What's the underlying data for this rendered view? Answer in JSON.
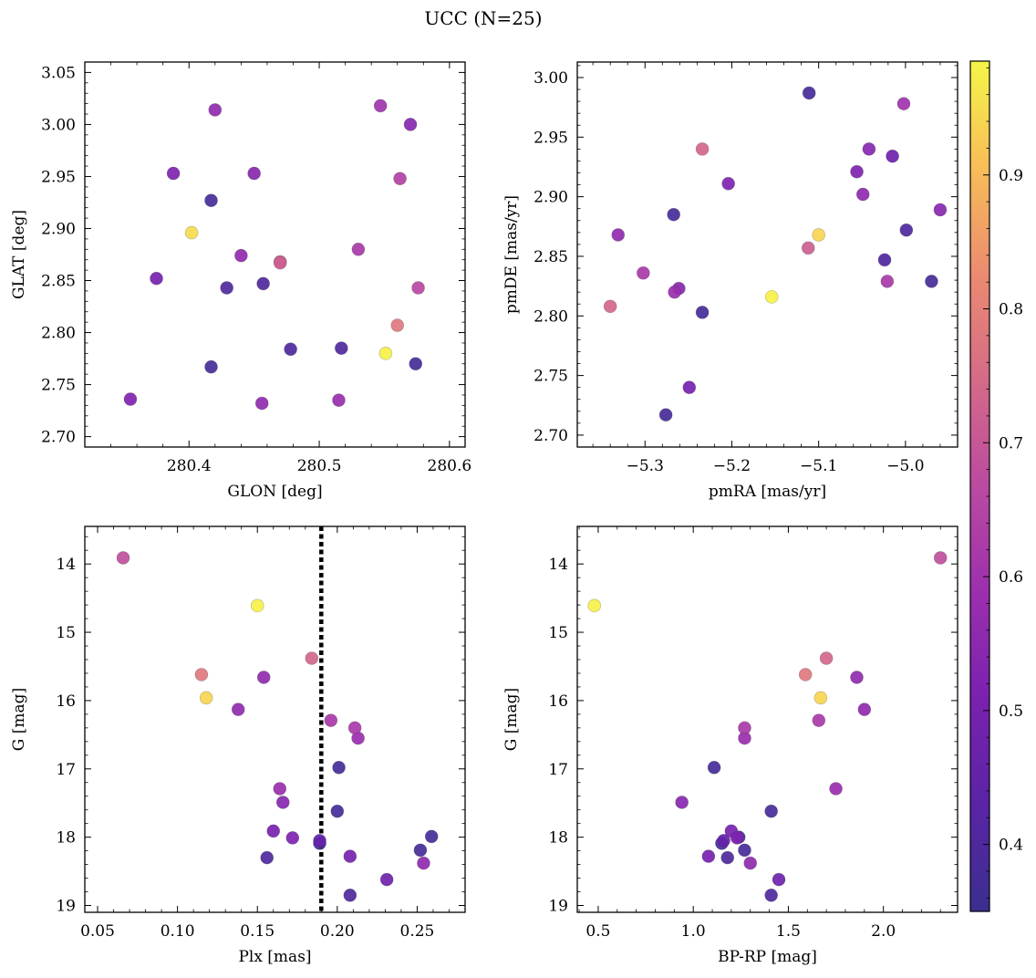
{
  "suptitle": "UCC (N=25)",
  "colorbar": {
    "colormap": "plasma",
    "range": [
      0.35,
      0.985
    ],
    "ticks": [
      0.4,
      0.5,
      0.6,
      0.7,
      0.8,
      0.9
    ],
    "tick_labels": [
      "0.4",
      "0.5",
      "0.6",
      "0.7",
      "0.8",
      "0.9"
    ]
  },
  "chart_data": [
    {
      "type": "scatter",
      "xlabel": "GLON [deg]",
      "ylabel": "GLAT [deg]",
      "xlim": [
        280.32,
        280.612
      ],
      "ylim": [
        2.69,
        3.06
      ],
      "xticks": [
        280.4,
        280.5,
        280.6
      ],
      "xtick_labels": [
        "280.4",
        "280.5",
        "280.6"
      ],
      "yticks": [
        2.7,
        2.75,
        2.8,
        2.85,
        2.9,
        2.95,
        3.0,
        3.05
      ],
      "ytick_labels": [
        "2.70",
        "2.75",
        "2.80",
        "2.85",
        "2.90",
        "2.95",
        "3.00",
        "3.05"
      ],
      "points": [
        {
          "x": 280.355,
          "y": 2.736,
          "c": 0.52
        },
        {
          "x": 280.375,
          "y": 2.852,
          "c": 0.5
        },
        {
          "x": 280.388,
          "y": 2.953,
          "c": 0.52
        },
        {
          "x": 280.402,
          "y": 2.896,
          "c": 0.95
        },
        {
          "x": 280.417,
          "y": 2.927,
          "c": 0.38
        },
        {
          "x": 280.417,
          "y": 2.767,
          "c": 0.38
        },
        {
          "x": 280.42,
          "y": 3.014,
          "c": 0.56
        },
        {
          "x": 280.429,
          "y": 2.843,
          "c": 0.4
        },
        {
          "x": 280.44,
          "y": 2.874,
          "c": 0.56
        },
        {
          "x": 280.45,
          "y": 2.953,
          "c": 0.54
        },
        {
          "x": 280.456,
          "y": 2.732,
          "c": 0.56
        },
        {
          "x": 280.457,
          "y": 2.847,
          "c": 0.4
        },
        {
          "x": 280.47,
          "y": 2.868,
          "c": 0.72
        },
        {
          "x": 280.478,
          "y": 2.784,
          "c": 0.4
        },
        {
          "x": 280.515,
          "y": 2.735,
          "c": 0.58
        },
        {
          "x": 280.517,
          "y": 2.785,
          "c": 0.4
        },
        {
          "x": 280.53,
          "y": 2.88,
          "c": 0.62
        },
        {
          "x": 280.547,
          "y": 3.018,
          "c": 0.6
        },
        {
          "x": 280.551,
          "y": 2.78,
          "c": 0.98
        },
        {
          "x": 280.56,
          "y": 2.807,
          "c": 0.78
        },
        {
          "x": 280.562,
          "y": 2.948,
          "c": 0.64
        },
        {
          "x": 280.57,
          "y": 3.0,
          "c": 0.54
        },
        {
          "x": 280.574,
          "y": 2.77,
          "c": 0.38
        },
        {
          "x": 280.576,
          "y": 2.843,
          "c": 0.66
        },
        {
          "x": 280.47,
          "y": 2.867,
          "c": 0.72
        }
      ]
    },
    {
      "type": "scatter",
      "xlabel": "pmRA [mas/yr]",
      "ylabel": "pmDE [mas/yr]",
      "xlim": [
        -5.378,
        -4.94
      ],
      "ylim": [
        2.69,
        3.013
      ],
      "xticks": [
        -5.3,
        -5.2,
        -5.1,
        -5.0
      ],
      "xtick_labels": [
        "−5.3",
        "−5.2",
        "−5.1",
        "−5.0"
      ],
      "yticks": [
        2.7,
        2.75,
        2.8,
        2.85,
        2.9,
        2.95,
        3.0
      ],
      "ytick_labels": [
        "2.70",
        "2.75",
        "2.80",
        "2.85",
        "2.90",
        "2.95",
        "3.00"
      ],
      "points": [
        {
          "x": -5.34,
          "y": 2.808,
          "c": 0.74
        },
        {
          "x": -5.331,
          "y": 2.868,
          "c": 0.56
        },
        {
          "x": -5.302,
          "y": 2.836,
          "c": 0.62
        },
        {
          "x": -5.276,
          "y": 2.717,
          "c": 0.38
        },
        {
          "x": -5.267,
          "y": 2.885,
          "c": 0.38
        },
        {
          "x": -5.266,
          "y": 2.82,
          "c": 0.58
        },
        {
          "x": -5.261,
          "y": 2.823,
          "c": 0.54
        },
        {
          "x": -5.249,
          "y": 2.74,
          "c": 0.5
        },
        {
          "x": -5.234,
          "y": 2.94,
          "c": 0.74
        },
        {
          "x": -5.234,
          "y": 2.803,
          "c": 0.38
        },
        {
          "x": -5.204,
          "y": 2.911,
          "c": 0.52
        },
        {
          "x": -5.154,
          "y": 2.816,
          "c": 0.98
        },
        {
          "x": -5.112,
          "y": 2.857,
          "c": 0.72
        },
        {
          "x": -5.111,
          "y": 2.987,
          "c": 0.38
        },
        {
          "x": -5.1,
          "y": 2.868,
          "c": 0.94
        },
        {
          "x": -5.056,
          "y": 2.921,
          "c": 0.52
        },
        {
          "x": -5.049,
          "y": 2.902,
          "c": 0.56
        },
        {
          "x": -5.042,
          "y": 2.94,
          "c": 0.54
        },
        {
          "x": -5.024,
          "y": 2.847,
          "c": 0.4
        },
        {
          "x": -5.021,
          "y": 2.829,
          "c": 0.62
        },
        {
          "x": -5.015,
          "y": 2.934,
          "c": 0.48
        },
        {
          "x": -5.002,
          "y": 2.978,
          "c": 0.6
        },
        {
          "x": -4.999,
          "y": 2.872,
          "c": 0.4
        },
        {
          "x": -4.97,
          "y": 2.829,
          "c": 0.38
        },
        {
          "x": -4.96,
          "y": 2.889,
          "c": 0.54
        }
      ]
    },
    {
      "type": "scatter",
      "xlabel": "Plx [mas]",
      "ylabel": "G [mag]",
      "xlim": [
        0.042,
        0.28
      ],
      "ylim": [
        19.1,
        13.45
      ],
      "y_inverted": true,
      "xticks": [
        0.05,
        0.1,
        0.15,
        0.2,
        0.25
      ],
      "xtick_labels": [
        "0.05",
        "0.10",
        "0.15",
        "0.20",
        "0.25"
      ],
      "yticks": [
        14,
        15,
        16,
        17,
        18,
        19
      ],
      "ytick_labels": [
        "14",
        "15",
        "16",
        "17",
        "18",
        "19"
      ],
      "vline": 0.19,
      "points": [
        {
          "x": 0.066,
          "y": 13.91,
          "c": 0.68
        },
        {
          "x": 0.115,
          "y": 15.62,
          "c": 0.78
        },
        {
          "x": 0.118,
          "y": 15.96,
          "c": 0.94
        },
        {
          "x": 0.138,
          "y": 16.13,
          "c": 0.56
        },
        {
          "x": 0.15,
          "y": 14.61,
          "c": 0.98
        },
        {
          "x": 0.154,
          "y": 15.66,
          "c": 0.56
        },
        {
          "x": 0.156,
          "y": 18.3,
          "c": 0.4
        },
        {
          "x": 0.16,
          "y": 17.91,
          "c": 0.5
        },
        {
          "x": 0.164,
          "y": 17.29,
          "c": 0.58
        },
        {
          "x": 0.166,
          "y": 17.49,
          "c": 0.54
        },
        {
          "x": 0.172,
          "y": 18.01,
          "c": 0.52
        },
        {
          "x": 0.184,
          "y": 15.38,
          "c": 0.74
        },
        {
          "x": 0.189,
          "y": 18.05,
          "c": 0.46
        },
        {
          "x": 0.189,
          "y": 18.09,
          "c": 0.38
        },
        {
          "x": 0.196,
          "y": 16.29,
          "c": 0.62
        },
        {
          "x": 0.2,
          "y": 17.62,
          "c": 0.38
        },
        {
          "x": 0.201,
          "y": 16.98,
          "c": 0.38
        },
        {
          "x": 0.208,
          "y": 18.28,
          "c": 0.5
        },
        {
          "x": 0.208,
          "y": 18.85,
          "c": 0.4
        },
        {
          "x": 0.211,
          "y": 16.4,
          "c": 0.62
        },
        {
          "x": 0.213,
          "y": 16.55,
          "c": 0.58
        },
        {
          "x": 0.231,
          "y": 18.62,
          "c": 0.48
        },
        {
          "x": 0.252,
          "y": 18.19,
          "c": 0.38
        },
        {
          "x": 0.254,
          "y": 18.38,
          "c": 0.56
        },
        {
          "x": 0.259,
          "y": 17.99,
          "c": 0.38
        }
      ]
    },
    {
      "type": "scatter",
      "xlabel": "BP-RP [mag]",
      "ylabel": "G [mag]",
      "xlim": [
        0.39,
        2.39
      ],
      "ylim": [
        19.1,
        13.45
      ],
      "y_inverted": true,
      "xticks": [
        0.5,
        1.0,
        1.5,
        2.0
      ],
      "xtick_labels": [
        "0.5",
        "1.0",
        "1.5",
        "2.0"
      ],
      "yticks": [
        14,
        15,
        16,
        17,
        18,
        19
      ],
      "ytick_labels": [
        "14",
        "15",
        "16",
        "17",
        "18",
        "19"
      ],
      "points": [
        {
          "x": 2.3,
          "y": 13.91,
          "c": 0.68
        },
        {
          "x": 0.48,
          "y": 14.61,
          "c": 0.98
        },
        {
          "x": 1.59,
          "y": 15.62,
          "c": 0.78
        },
        {
          "x": 1.7,
          "y": 15.38,
          "c": 0.74
        },
        {
          "x": 1.86,
          "y": 15.66,
          "c": 0.56
        },
        {
          "x": 1.67,
          "y": 15.96,
          "c": 0.94
        },
        {
          "x": 1.9,
          "y": 16.13,
          "c": 0.56
        },
        {
          "x": 1.66,
          "y": 16.29,
          "c": 0.62
        },
        {
          "x": 1.27,
          "y": 16.4,
          "c": 0.62
        },
        {
          "x": 1.27,
          "y": 16.55,
          "c": 0.58
        },
        {
          "x": 1.11,
          "y": 16.98,
          "c": 0.38
        },
        {
          "x": 1.75,
          "y": 17.29,
          "c": 0.58
        },
        {
          "x": 0.94,
          "y": 17.49,
          "c": 0.54
        },
        {
          "x": 1.41,
          "y": 17.62,
          "c": 0.38
        },
        {
          "x": 1.2,
          "y": 17.91,
          "c": 0.5
        },
        {
          "x": 1.23,
          "y": 18.01,
          "c": 0.52
        },
        {
          "x": 1.16,
          "y": 18.05,
          "c": 0.46
        },
        {
          "x": 1.15,
          "y": 18.09,
          "c": 0.38
        },
        {
          "x": 1.27,
          "y": 18.19,
          "c": 0.38
        },
        {
          "x": 1.08,
          "y": 18.28,
          "c": 0.5
        },
        {
          "x": 1.18,
          "y": 18.3,
          "c": 0.4
        },
        {
          "x": 1.3,
          "y": 18.38,
          "c": 0.56
        },
        {
          "x": 1.45,
          "y": 18.62,
          "c": 0.48
        },
        {
          "x": 1.41,
          "y": 18.85,
          "c": 0.4
        },
        {
          "x": 1.24,
          "y": 18.0,
          "c": 0.38
        }
      ]
    }
  ]
}
